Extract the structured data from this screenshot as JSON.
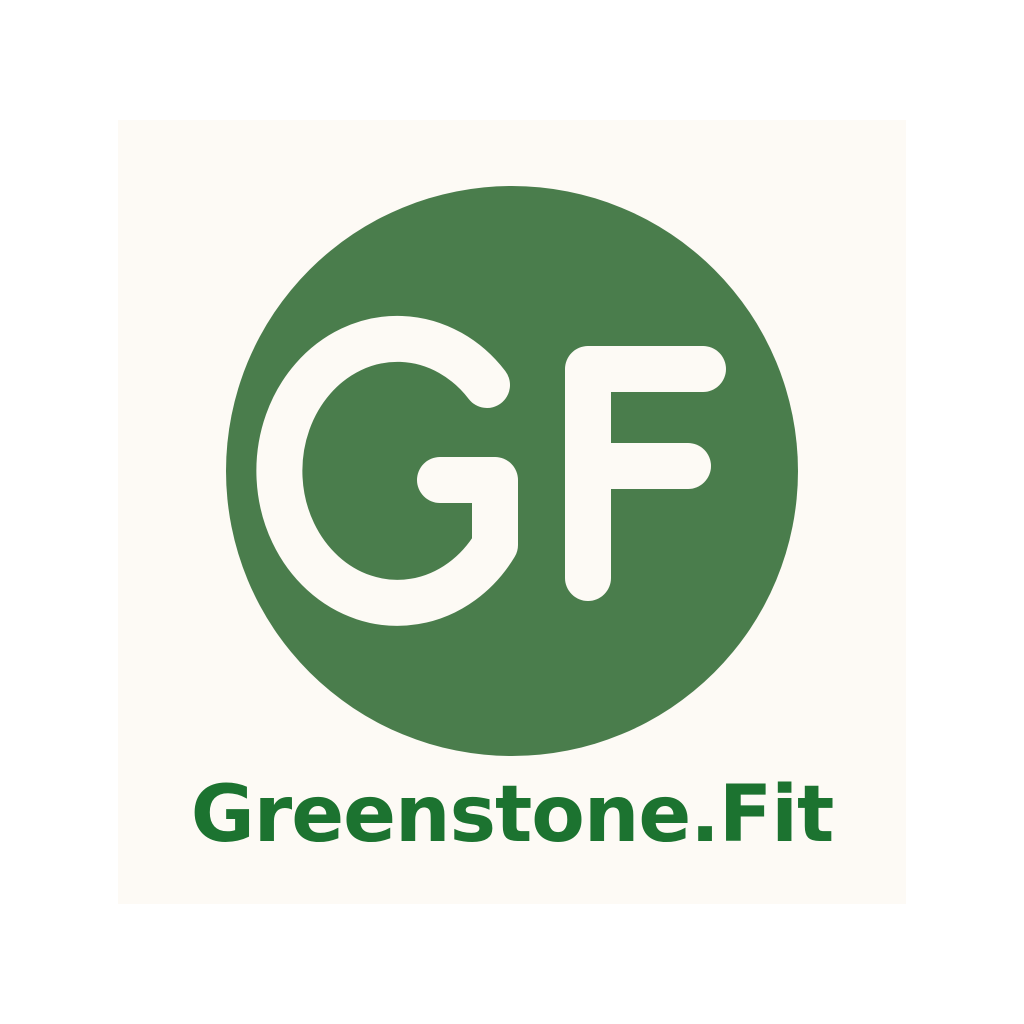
{
  "brand": {
    "monogram": "GF",
    "name": "Greenstone.Fit"
  },
  "colors": {
    "background": "#ffffff",
    "card": "#fdfaf5",
    "emblem": "#4a7d4c",
    "monogram": "#fdfaf5",
    "wordmark": "#1c7330"
  },
  "icons": {
    "logo": "gf-monogram-icon"
  }
}
